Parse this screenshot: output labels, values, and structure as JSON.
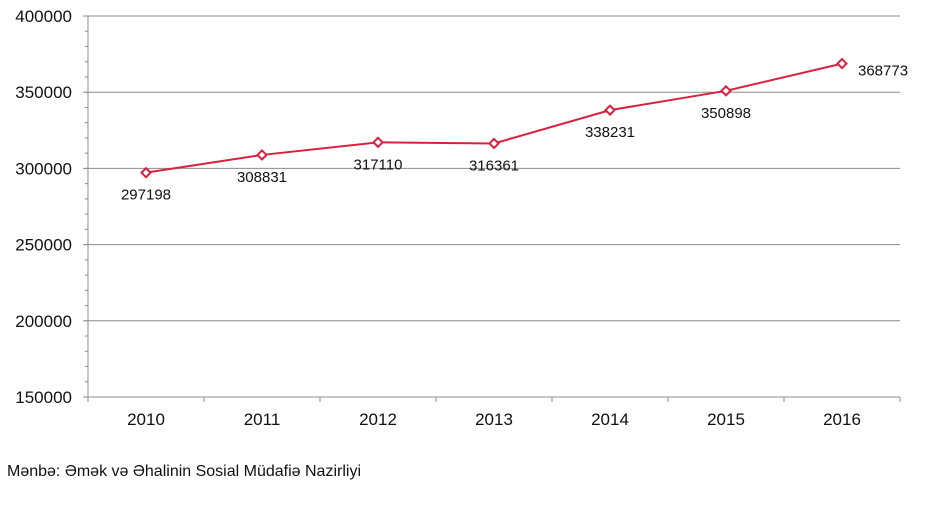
{
  "chart_data": {
    "type": "line",
    "title": "",
    "xlabel": "",
    "ylabel": "",
    "categories": [
      "2010",
      "2011",
      "2012",
      "2013",
      "2014",
      "2015",
      "2016"
    ],
    "series": [
      {
        "values": [
          297198,
          308831,
          317110,
          316361,
          338231,
          350898,
          368773
        ],
        "color": "#D9213F"
      }
    ],
    "ylim": [
      150000,
      400000
    ],
    "yticks": [
      150000,
      200000,
      250000,
      300000,
      350000,
      400000
    ],
    "ytick_labels": [
      "150000",
      "200000",
      "250000",
      "300000",
      "350000",
      "400000"
    ],
    "grid": true,
    "legend": "none",
    "data_labels": [
      "297198",
      "308831",
      "317110",
      "316361",
      "338231",
      "350898",
      "368773"
    ]
  },
  "source_note": "Mənbə: Əmək və Əhalinin  Sosial Müdafiə Nazirliyi"
}
